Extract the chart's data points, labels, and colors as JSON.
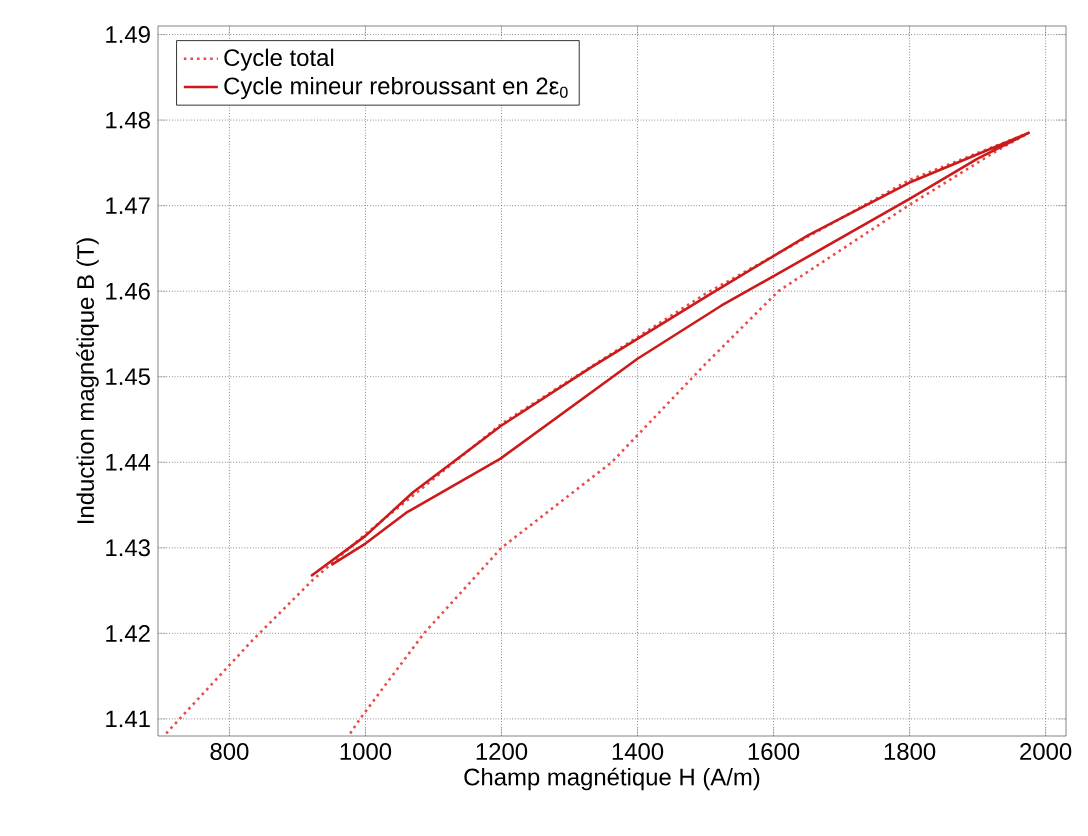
{
  "chart_data": {
    "type": "line",
    "xlabel": "Champ magnétique H (A/m)",
    "ylabel": "Induction magnétique B (T)",
    "xlim": [
      695,
      2030
    ],
    "ylim": [
      1.408,
      1.491
    ],
    "xticks": [
      800,
      1000,
      1200,
      1400,
      1600,
      1800,
      2000
    ],
    "yticks": [
      1.41,
      1.42,
      1.43,
      1.44,
      1.45,
      1.46,
      1.47,
      1.48,
      1.49
    ],
    "grid": true,
    "legend": "top left",
    "marker": "none",
    "series": [
      {
        "name": "Cycle total",
        "color": "#ea4a4a",
        "line_style": "dotted",
        "x": [
          707,
          834,
          922,
          1000,
          1200,
          1500,
          1800,
          1975,
          1930,
          1798,
          1607,
          1500,
          1362,
          1200,
          1086,
          992,
          975
        ],
        "values": [
          1.4083,
          1.4192,
          1.4262,
          1.4316,
          1.4445,
          1.4597,
          1.473,
          1.4785,
          1.4765,
          1.47,
          1.46,
          1.4515,
          1.44,
          1.43,
          1.42,
          1.41,
          1.408
        ]
      },
      {
        "name": "Cycle mineur rebroussant en 2ε$_{0}$",
        "color": "#cc1a1a",
        "line_style": "solid",
        "x": [
          920,
          1000,
          1070,
          1200,
          1330,
          1504,
          1650,
          1800,
          1900,
          1975,
          1900,
          1800,
          1650,
          1523,
          1400,
          1198,
          1060,
          1000,
          950
        ],
        "values": [
          1.4267,
          1.4314,
          1.4365,
          1.4443,
          1.451,
          1.4595,
          1.4665,
          1.4727,
          1.476,
          1.4785,
          1.4755,
          1.4708,
          1.464,
          1.4583,
          1.4521,
          1.4404,
          1.4341,
          1.4305,
          1.428
        ]
      }
    ]
  }
}
